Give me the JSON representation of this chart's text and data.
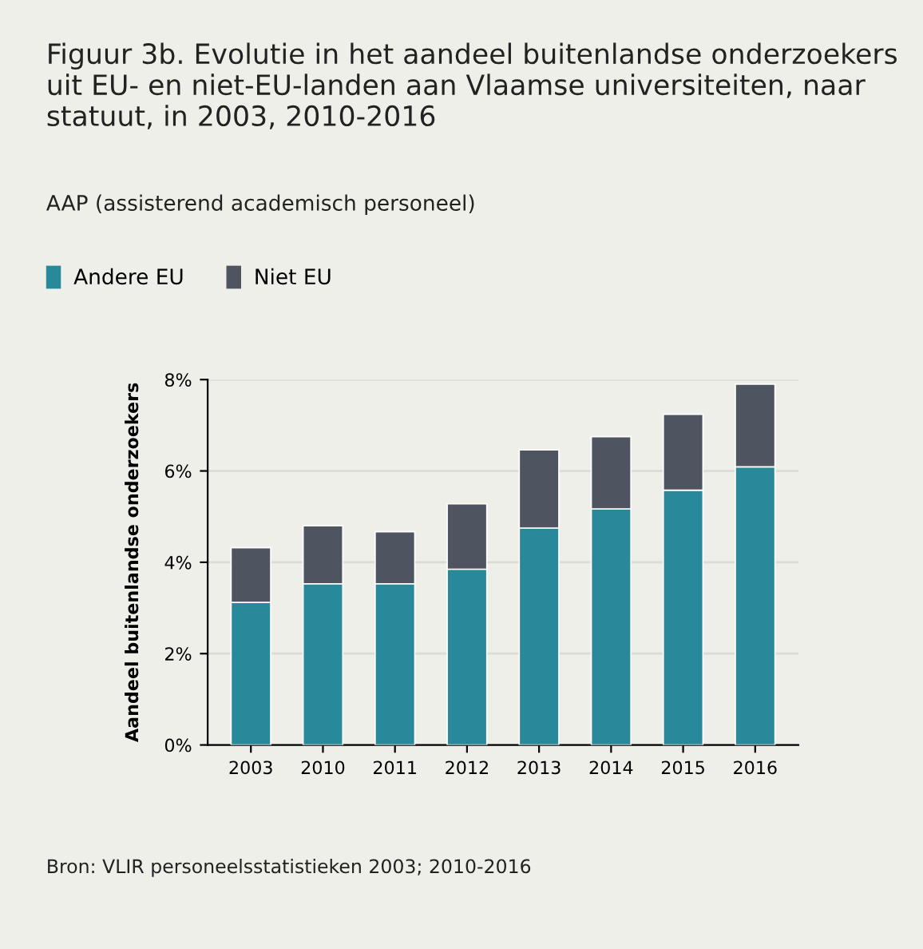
{
  "chart_data": {
    "type": "bar",
    "title": "Figuur 3b. Evolutie in het aandeel buitenlandse onderzoekers uit EU- en niet-EU-landen aan Vlaamse universiteiten, naar statuut, in 2003, 2010-2016",
    "subtitle": "AAP (assisterend academisch personeel)",
    "ylabel": "Aandeel buitenlandse onderzoekers",
    "categories": [
      "2003",
      "2010",
      "2011",
      "2012",
      "2013",
      "2014",
      "2015",
      "2016"
    ],
    "series": [
      {
        "name": "Andere EU",
        "color": "#28899b",
        "values": [
          3.12,
          3.53,
          3.53,
          3.85,
          4.75,
          5.17,
          5.58,
          6.09
        ]
      },
      {
        "name": "Niet EU",
        "color": "#4f5560",
        "values": [
          1.2,
          1.27,
          1.14,
          1.43,
          1.71,
          1.58,
          1.66,
          1.81
        ]
      }
    ],
    "stacked": true,
    "ylim": [
      0,
      8
    ],
    "yticks": [
      {
        "value": 0,
        "label": "0%"
      },
      {
        "value": 2,
        "label": "2%"
      },
      {
        "value": 4,
        "label": "4%"
      },
      {
        "value": 6,
        "label": "6%"
      },
      {
        "value": 8,
        "label": "8%"
      }
    ],
    "grid": "y",
    "legend": "top left",
    "annotations": [
      "Bron: VLIR personeelsstatistieken 2003; 2010-2016"
    ]
  }
}
